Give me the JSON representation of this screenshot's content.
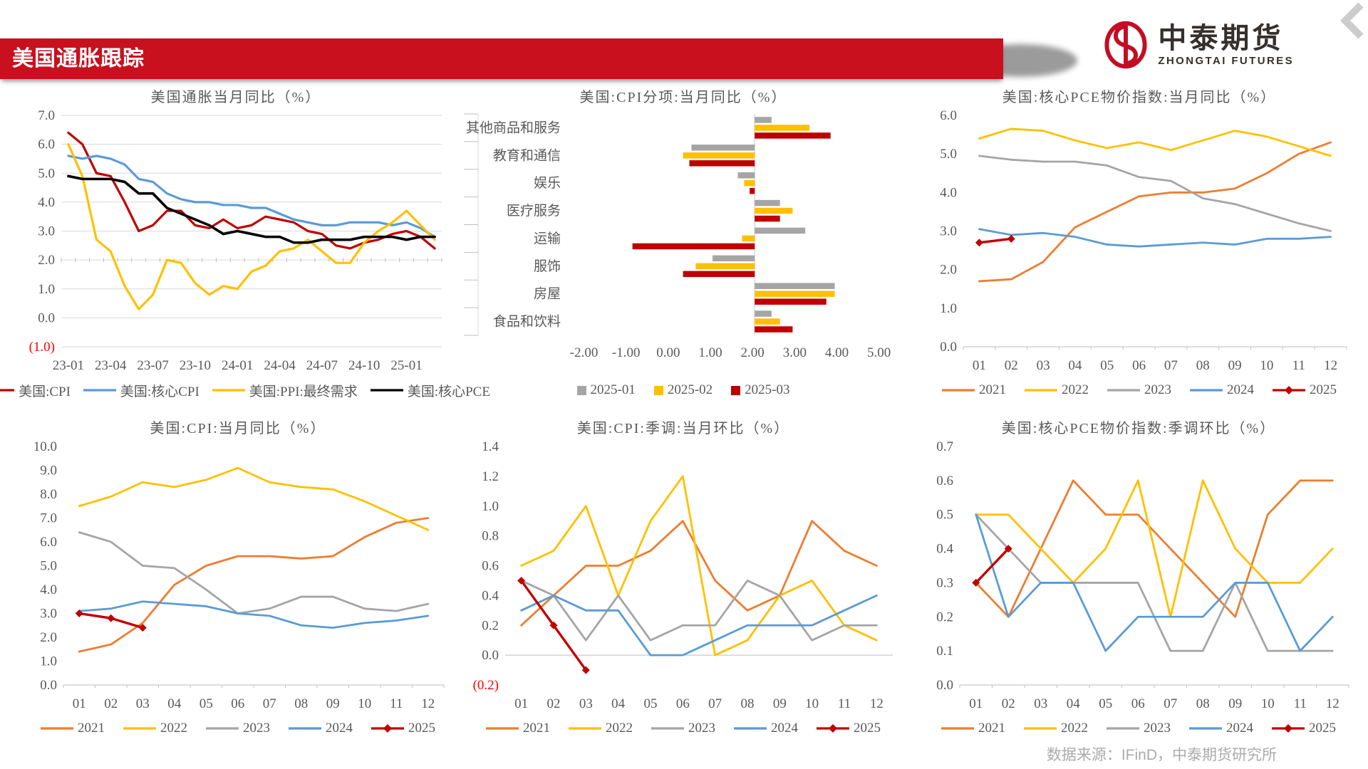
{
  "header": {
    "title": "美国通胀跟踪"
  },
  "logo": {
    "name_cn": "中泰期货",
    "name_en": "ZHONGTAI FUTURES"
  },
  "footer": {
    "source": "数据来源：IFinD，中泰期货研究所"
  },
  "colors": {
    "banner_red": "#c8101e",
    "logo_red": "#c30d23",
    "series_orange": "#ED7D31",
    "series_yellow": "#FFC000",
    "series_gray": "#A5A5A5",
    "series_blue": "#5B9BD5",
    "series_darkred": "#C00000",
    "series_black": "#000000",
    "grid": "#D9D9D9",
    "tick_text": "#595959"
  },
  "chart_data": [
    {
      "type": "line",
      "title": "美国通胀当月同比（%）",
      "x_labels": [
        "23-01",
        "23-04",
        "23-07",
        "23-10",
        "24-01",
        "24-04",
        "24-07",
        "24-10",
        "25-01"
      ],
      "x_label_indices": [
        0,
        3,
        6,
        9,
        12,
        15,
        18,
        21,
        24
      ],
      "n_points": 27,
      "ylim": [
        -1,
        7
      ],
      "y_ticks": [
        {
          "v": 7,
          "label": "7.0"
        },
        {
          "v": 6,
          "label": "6.0"
        },
        {
          "v": 5,
          "label": "5.0"
        },
        {
          "v": 4,
          "label": "4.0"
        },
        {
          "v": 3,
          "label": "3.0"
        },
        {
          "v": 2,
          "label": "2.0"
        },
        {
          "v": 1,
          "label": "1.0"
        },
        {
          "v": 0,
          "label": "0.0"
        },
        {
          "v": -1,
          "label": "(1.0)",
          "red": true
        }
      ],
      "grid": true,
      "cross": 2,
      "legend_position": "bottom",
      "series": [
        {
          "name": "美国:CPI",
          "color": "#C00000",
          "width": 3.2,
          "values": [
            6.4,
            6.0,
            5.0,
            4.9,
            4.0,
            3.0,
            3.2,
            3.7,
            3.7,
            3.2,
            3.1,
            3.4,
            3.1,
            3.2,
            3.5,
            3.4,
            3.3,
            3.0,
            2.9,
            2.5,
            2.4,
            2.6,
            2.7,
            2.9,
            3.0,
            2.8,
            2.4
          ]
        },
        {
          "name": "美国:核心CPI",
          "color": "#5B9BD5",
          "width": 3.2,
          "values": [
            5.6,
            5.5,
            5.6,
            5.5,
            5.3,
            4.8,
            4.7,
            4.3,
            4.1,
            4.0,
            4.0,
            3.9,
            3.9,
            3.8,
            3.8,
            3.6,
            3.4,
            3.3,
            3.2,
            3.2,
            3.3,
            3.3,
            3.3,
            3.2,
            3.3,
            3.1,
            2.8
          ]
        },
        {
          "name": "美国:PPI:最终需求",
          "color": "#FFC000",
          "width": 3.2,
          "values": [
            6.0,
            4.9,
            2.7,
            2.3,
            1.1,
            0.3,
            0.8,
            2.0,
            1.9,
            1.2,
            0.8,
            1.1,
            1.0,
            1.6,
            1.8,
            2.3,
            2.4,
            2.7,
            2.3,
            1.9,
            1.9,
            2.6,
            3.0,
            3.3,
            3.7,
            3.2,
            2.7
          ]
        },
        {
          "name": "美国:核心PCE",
          "color": "#000000",
          "width": 3.6,
          "values": [
            4.9,
            4.8,
            4.8,
            4.8,
            4.7,
            4.3,
            4.3,
            3.8,
            3.6,
            3.4,
            3.2,
            2.9,
            3.0,
            2.9,
            2.8,
            2.8,
            2.6,
            2.6,
            2.7,
            2.7,
            2.7,
            2.8,
            2.8,
            2.8,
            2.7,
            2.8,
            2.8
          ]
        }
      ]
    },
    {
      "type": "bar",
      "title": "美国:CPI分项:当月同比（%）",
      "categories": [
        "其他商品和服务",
        "教育和通信",
        "娱乐",
        "医疗服务",
        "运输",
        "服饰",
        "房屋",
        "食品和饮料"
      ],
      "x_ticks": [
        "-2.00",
        "-1.00",
        "0.00",
        "1.00",
        "2.00",
        "3.00",
        "4.00",
        "5.00"
      ],
      "zero_frac": 0.57,
      "unit_frac": 0.1286,
      "legend_position": "bottom",
      "series": [
        {
          "name": "2025-01",
          "color": "#A5A5A5",
          "values": [
            0.4,
            -1.5,
            -0.4,
            0.6,
            1.2,
            -1.0,
            1.9,
            0.4
          ]
        },
        {
          "name": "2025-02",
          "color": "#FFC000",
          "values": [
            1.3,
            -1.7,
            -0.25,
            0.9,
            -0.3,
            -1.4,
            1.9,
            0.6
          ]
        },
        {
          "name": "2025-03",
          "color": "#C00000",
          "values": [
            1.8,
            -1.55,
            -0.12,
            0.6,
            -2.9,
            -1.7,
            1.7,
            0.9
          ]
        }
      ]
    },
    {
      "type": "line",
      "title": "美国:核心PCE物价指数:当月同比（%）",
      "x_labels": [
        "01",
        "02",
        "03",
        "04",
        "05",
        "06",
        "07",
        "08",
        "09",
        "10",
        "11",
        "12"
      ],
      "n_points": 12,
      "ylim": [
        0,
        6
      ],
      "y_ticks": [
        {
          "v": 6,
          "label": "6.0"
        },
        {
          "v": 5,
          "label": "5.0"
        },
        {
          "v": 4,
          "label": "4.0"
        },
        {
          "v": 3,
          "label": "3.0"
        },
        {
          "v": 2,
          "label": "2.0"
        },
        {
          "v": 1,
          "label": "1.0"
        },
        {
          "v": 0,
          "label": "0.0"
        }
      ],
      "grid": false,
      "baseline": 0,
      "baseline_ticks": true,
      "legend_position": "bottom",
      "series": [
        {
          "name": "2021",
          "color": "#ED7D31",
          "width": 2.8,
          "values": [
            1.7,
            1.75,
            2.2,
            3.1,
            3.5,
            3.9,
            4.0,
            4.0,
            4.1,
            4.5,
            5.0,
            5.3
          ]
        },
        {
          "name": "2022",
          "color": "#FFC000",
          "width": 2.8,
          "values": [
            5.4,
            5.65,
            5.6,
            5.35,
            5.15,
            5.3,
            5.1,
            5.35,
            5.6,
            5.45,
            5.2,
            4.95
          ]
        },
        {
          "name": "2023",
          "color": "#A5A5A5",
          "width": 2.8,
          "values": [
            4.95,
            4.85,
            4.8,
            4.8,
            4.7,
            4.4,
            4.3,
            3.85,
            3.7,
            3.45,
            3.2,
            3.0
          ]
        },
        {
          "name": "2024",
          "color": "#5B9BD5",
          "width": 2.8,
          "values": [
            3.05,
            2.9,
            2.95,
            2.85,
            2.65,
            2.6,
            2.65,
            2.7,
            2.65,
            2.8,
            2.8,
            2.85
          ]
        },
        {
          "name": "2025",
          "color": "#C00000",
          "width": 3.4,
          "marker": true,
          "values": [
            2.7,
            2.8
          ]
        }
      ]
    },
    {
      "type": "line",
      "title": "美国:CPI:当月同比（%）",
      "x_labels": [
        "01",
        "02",
        "03",
        "04",
        "05",
        "06",
        "07",
        "08",
        "09",
        "10",
        "11",
        "12"
      ],
      "n_points": 12,
      "ylim": [
        0,
        10
      ],
      "y_ticks": [
        {
          "v": 10,
          "label": "10.0"
        },
        {
          "v": 9,
          "label": "9.0"
        },
        {
          "v": 8,
          "label": "8.0"
        },
        {
          "v": 7,
          "label": "7.0"
        },
        {
          "v": 6,
          "label": "6.0"
        },
        {
          "v": 5,
          "label": "5.0"
        },
        {
          "v": 4,
          "label": "4.0"
        },
        {
          "v": 3,
          "label": "3.0"
        },
        {
          "v": 2,
          "label": "2.0"
        },
        {
          "v": 1,
          "label": "1.0"
        },
        {
          "v": 0,
          "label": "0.0"
        }
      ],
      "grid": false,
      "baseline": 0,
      "baseline_ticks": true,
      "legend_position": "bottom",
      "series": [
        {
          "name": "2021",
          "color": "#ED7D31",
          "width": 2.8,
          "values": [
            1.4,
            1.7,
            2.6,
            4.2,
            5.0,
            5.4,
            5.4,
            5.3,
            5.4,
            6.2,
            6.8,
            7.0
          ]
        },
        {
          "name": "2022",
          "color": "#FFC000",
          "width": 2.8,
          "values": [
            7.5,
            7.9,
            8.5,
            8.3,
            8.6,
            9.1,
            8.5,
            8.3,
            8.2,
            7.7,
            7.1,
            6.5
          ]
        },
        {
          "name": "2023",
          "color": "#A5A5A5",
          "width": 2.8,
          "values": [
            6.4,
            6.0,
            5.0,
            4.9,
            4.0,
            3.0,
            3.2,
            3.7,
            3.7,
            3.2,
            3.1,
            3.4
          ]
        },
        {
          "name": "2024",
          "color": "#5B9BD5",
          "width": 2.8,
          "values": [
            3.1,
            3.2,
            3.5,
            3.4,
            3.3,
            3.0,
            2.9,
            2.5,
            2.4,
            2.6,
            2.7,
            2.9
          ]
        },
        {
          "name": "2025",
          "color": "#C00000",
          "width": 3.4,
          "marker": true,
          "values": [
            3.0,
            2.8,
            2.4
          ]
        }
      ]
    },
    {
      "type": "line",
      "title": "美国:CPI:季调:当月环比（%）",
      "x_labels": [
        "01",
        "02",
        "03",
        "04",
        "05",
        "06",
        "07",
        "08",
        "09",
        "10",
        "11",
        "12"
      ],
      "n_points": 12,
      "ylim": [
        -0.2,
        1.4
      ],
      "y_ticks": [
        {
          "v": 1.4,
          "label": "1.4"
        },
        {
          "v": 1.2,
          "label": "1.2"
        },
        {
          "v": 1.0,
          "label": "1.0"
        },
        {
          "v": 0.8,
          "label": "0.8"
        },
        {
          "v": 0.6,
          "label": "0.6"
        },
        {
          "v": 0.4,
          "label": "0.4"
        },
        {
          "v": 0.2,
          "label": "0.2"
        },
        {
          "v": 0.0,
          "label": "0.0"
        },
        {
          "v": -0.2,
          "label": "(0.2)",
          "red": true
        }
      ],
      "grid": false,
      "baseline": 0,
      "baseline_ticks": false,
      "legend_position": "bottom",
      "series": [
        {
          "name": "2021",
          "color": "#ED7D31",
          "width": 2.8,
          "values": [
            0.2,
            0.4,
            0.6,
            0.6,
            0.7,
            0.9,
            0.5,
            0.3,
            0.4,
            0.9,
            0.7,
            0.6
          ]
        },
        {
          "name": "2022",
          "color": "#FFC000",
          "width": 2.8,
          "values": [
            0.6,
            0.7,
            1.0,
            0.4,
            0.9,
            1.2,
            0.0,
            0.1,
            0.4,
            0.5,
            0.2,
            0.1
          ]
        },
        {
          "name": "2023",
          "color": "#A5A5A5",
          "width": 2.8,
          "values": [
            0.5,
            0.4,
            0.1,
            0.4,
            0.1,
            0.2,
            0.2,
            0.5,
            0.4,
            0.1,
            0.2,
            0.2
          ]
        },
        {
          "name": "2024",
          "color": "#5B9BD5",
          "width": 2.8,
          "values": [
            0.3,
            0.4,
            0.3,
            0.3,
            0.0,
            0.0,
            0.1,
            0.2,
            0.2,
            0.2,
            0.3,
            0.4
          ]
        },
        {
          "name": "2025",
          "color": "#C00000",
          "width": 3.4,
          "marker": true,
          "values": [
            0.5,
            0.2,
            -0.1
          ]
        }
      ]
    },
    {
      "type": "line",
      "title": "美国:核心PCE物价指数:季调环比（%）",
      "x_labels": [
        "01",
        "02",
        "03",
        "04",
        "05",
        "06",
        "07",
        "08",
        "09",
        "10",
        "11",
        "12"
      ],
      "n_points": 12,
      "ylim": [
        0,
        0.7
      ],
      "y_ticks": [
        {
          "v": 0.7,
          "label": "0.7"
        },
        {
          "v": 0.6,
          "label": "0.6"
        },
        {
          "v": 0.5,
          "label": "0.5"
        },
        {
          "v": 0.4,
          "label": "0.4"
        },
        {
          "v": 0.3,
          "label": "0.3"
        },
        {
          "v": 0.2,
          "label": "0.2"
        },
        {
          "v": 0.1,
          "label": "0.1"
        },
        {
          "v": 0.0,
          "label": "0.0"
        }
      ],
      "grid": false,
      "baseline": 0,
      "baseline_ticks": true,
      "legend_position": "bottom",
      "series": [
        {
          "name": "2021",
          "color": "#ED7D31",
          "width": 2.8,
          "values": [
            0.3,
            0.2,
            0.4,
            0.6,
            0.5,
            0.5,
            0.4,
            0.3,
            0.2,
            0.5,
            0.6,
            0.6
          ]
        },
        {
          "name": "2022",
          "color": "#FFC000",
          "width": 2.8,
          "values": [
            0.5,
            0.5,
            0.4,
            0.3,
            0.4,
            0.6,
            0.2,
            0.6,
            0.4,
            0.3,
            0.3,
            0.4
          ]
        },
        {
          "name": "2023",
          "color": "#A5A5A5",
          "width": 2.8,
          "values": [
            0.5,
            0.4,
            0.3,
            0.3,
            0.3,
            0.3,
            0.1,
            0.1,
            0.3,
            0.1,
            0.1,
            0.1
          ]
        },
        {
          "name": "2024",
          "color": "#5B9BD5",
          "width": 2.8,
          "values": [
            0.5,
            0.2,
            0.3,
            0.3,
            0.1,
            0.2,
            0.2,
            0.2,
            0.3,
            0.3,
            0.1,
            0.2
          ]
        },
        {
          "name": "2025",
          "color": "#C00000",
          "width": 3.4,
          "marker": true,
          "values": [
            0.3,
            0.4
          ]
        }
      ]
    }
  ]
}
